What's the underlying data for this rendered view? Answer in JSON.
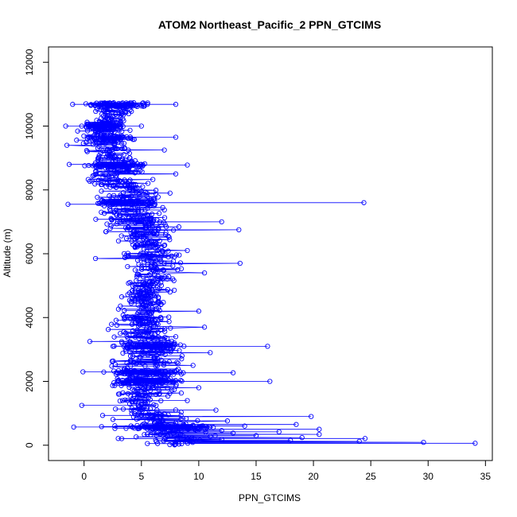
{
  "chart_data": {
    "type": "line",
    "title": "ATOM2 Northeast_Pacific_2 PPN_GTCIMS",
    "xlabel": "PPN_GTCIMS",
    "ylabel": "Altitude (m)",
    "xlim": [
      -3.1,
      35.6
    ],
    "ylim": [
      -480,
      12480
    ],
    "xticks": [
      0,
      5,
      10,
      15,
      20,
      25,
      30,
      35
    ],
    "yticks": [
      0,
      2000,
      4000,
      6000,
      8000,
      10000,
      12000
    ],
    "series_color": "#0000ff",
    "marker": "open-circle",
    "grid": false,
    "legend": "none",
    "profile": [
      {
        "alt": 60,
        "x": 34.1
      },
      {
        "alt": 90,
        "x": 29.6
      },
      {
        "alt": 120,
        "x": 24.0
      },
      {
        "alt": 150,
        "x": 18.0
      },
      {
        "alt": 180,
        "x": 12.0
      },
      {
        "alt": 210,
        "x": 24.5
      },
      {
        "alt": 240,
        "x": 19.0
      },
      {
        "alt": 270,
        "x": 11.0
      },
      {
        "alt": 300,
        "x": 15.0
      },
      {
        "alt": 340,
        "x": 20.5
      },
      {
        "alt": 380,
        "x": 13.0
      },
      {
        "alt": 420,
        "x": 17.0
      },
      {
        "alt": 460,
        "x": 12.0
      },
      {
        "alt": 500,
        "x": 20.5
      },
      {
        "alt": 540,
        "x": 9.0
      },
      {
        "alt": 570,
        "x": -0.9
      },
      {
        "alt": 600,
        "x": 14.0
      },
      {
        "alt": 650,
        "x": 18.5
      },
      {
        "alt": 700,
        "x": 8.0
      },
      {
        "alt": 760,
        "x": 12.5
      },
      {
        "alt": 830,
        "x": 6.0
      },
      {
        "alt": 900,
        "x": 19.8
      },
      {
        "alt": 980,
        "x": 7.0
      },
      {
        "alt": 1100,
        "x": 11.5
      },
      {
        "alt": 1250,
        "x": -0.2
      },
      {
        "alt": 1400,
        "x": 9.0
      },
      {
        "alt": 1600,
        "x": 3.0
      },
      {
        "alt": 1800,
        "x": 10.0
      },
      {
        "alt": 2000,
        "x": 16.2
      },
      {
        "alt": 2150,
        "x": 4.0
      },
      {
        "alt": 2270,
        "x": 13.0
      },
      {
        "alt": 2300,
        "x": -0.1
      },
      {
        "alt": 2500,
        "x": 9.5
      },
      {
        "alt": 2700,
        "x": 4.5
      },
      {
        "alt": 2900,
        "x": 11.0
      },
      {
        "alt": 3100,
        "x": 16.0
      },
      {
        "alt": 3250,
        "x": 0.5
      },
      {
        "alt": 3400,
        "x": 8.0
      },
      {
        "alt": 3700,
        "x": 10.5
      },
      {
        "alt": 4000,
        "x": 3.5
      },
      {
        "alt": 4200,
        "x": 10.0
      },
      {
        "alt": 4500,
        "x": 5.0
      },
      {
        "alt": 4800,
        "x": 7.5
      },
      {
        "alt": 5100,
        "x": 4.0
      },
      {
        "alt": 5400,
        "x": 10.5
      },
      {
        "alt": 5700,
        "x": 13.6
      },
      {
        "alt": 5850,
        "x": 1.0
      },
      {
        "alt": 6100,
        "x": 9.0
      },
      {
        "alt": 6400,
        "x": 3.0
      },
      {
        "alt": 6750,
        "x": 13.5
      },
      {
        "alt": 7000,
        "x": 12.0
      },
      {
        "alt": 7300,
        "x": 1.5
      },
      {
        "alt": 7600,
        "x": 24.4
      },
      {
        "alt": 7550,
        "x": -1.4
      },
      {
        "alt": 7900,
        "x": 7.5
      },
      {
        "alt": 8200,
        "x": 2.0
      },
      {
        "alt": 8500,
        "x": 8.0
      },
      {
        "alt": 8780,
        "x": 9.0
      },
      {
        "alt": 8800,
        "x": -1.3
      },
      {
        "alt": 9000,
        "x": 4.0
      },
      {
        "alt": 9250,
        "x": 7.0
      },
      {
        "alt": 9400,
        "x": -1.5
      },
      {
        "alt": 9650,
        "x": 8.0
      },
      {
        "alt": 9850,
        "x": 1.0
      },
      {
        "alt": 10000,
        "x": -1.6
      },
      {
        "alt": 10000,
        "x": 5.0
      },
      {
        "alt": 10250,
        "x": 1.5
      },
      {
        "alt": 10500,
        "x": 4.0
      },
      {
        "alt": 10680,
        "x": 8.0
      },
      {
        "alt": 10680,
        "x": -1.0
      }
    ],
    "envelope": [
      {
        "alt": 0,
        "min": 3.5,
        "max": 13.0
      },
      {
        "alt": 500,
        "min": 1.0,
        "max": 14.0
      },
      {
        "alt": 1000,
        "min": 1.0,
        "max": 9.5
      },
      {
        "alt": 1500,
        "min": 1.0,
        "max": 9.0
      },
      {
        "alt": 2000,
        "min": 1.0,
        "max": 10.0
      },
      {
        "alt": 2500,
        "min": 1.5,
        "max": 9.0
      },
      {
        "alt": 3000,
        "min": 1.5,
        "max": 10.0
      },
      {
        "alt": 3500,
        "min": 1.5,
        "max": 9.0
      },
      {
        "alt": 4000,
        "min": 2.0,
        "max": 8.5
      },
      {
        "alt": 4500,
        "min": 2.5,
        "max": 8.0
      },
      {
        "alt": 5000,
        "min": 2.5,
        "max": 9.0
      },
      {
        "alt": 5500,
        "min": 2.5,
        "max": 10.0
      },
      {
        "alt": 6000,
        "min": 2.0,
        "max": 9.5
      },
      {
        "alt": 6500,
        "min": 1.5,
        "max": 9.0
      },
      {
        "alt": 7000,
        "min": 0.5,
        "max": 9.0
      },
      {
        "alt": 7500,
        "min": 0.0,
        "max": 8.0
      },
      {
        "alt": 8000,
        "min": 0.0,
        "max": 7.5
      },
      {
        "alt": 8500,
        "min": -0.5,
        "max": 6.5
      },
      {
        "alt": 9000,
        "min": -1.0,
        "max": 6.0
      },
      {
        "alt": 9500,
        "min": -1.0,
        "max": 5.5
      },
      {
        "alt": 10000,
        "min": -1.0,
        "max": 4.5
      },
      {
        "alt": 10500,
        "min": -0.5,
        "max": 5.0
      },
      {
        "alt": 10700,
        "min": -1.0,
        "max": 7.0
      }
    ],
    "dense_layers": [
      560,
      2000,
      2270,
      3100,
      7600,
      8770,
      9620,
      10000,
      10670
    ],
    "n_points": 1800
  }
}
